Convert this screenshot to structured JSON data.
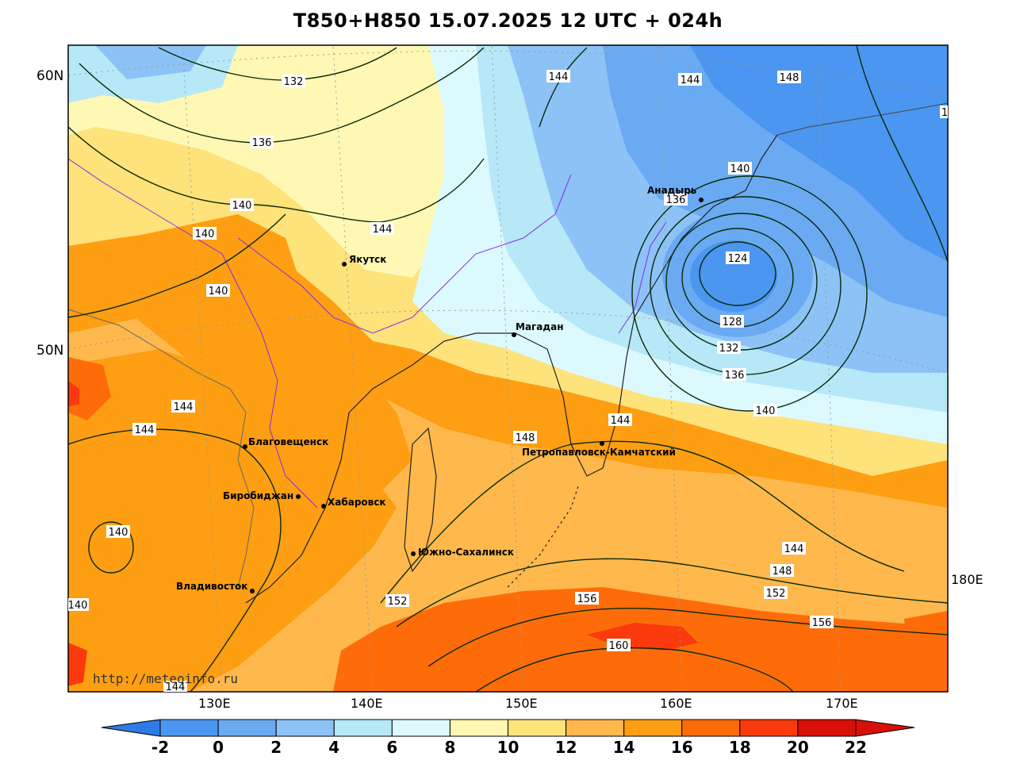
{
  "title": "T850+H850 15.07.2025 12 UTC + 024h",
  "watermark": "http://meteoinfo.ru",
  "lat_labels": [
    "60N",
    "50N"
  ],
  "lon_labels": [
    "130E",
    "140E",
    "150E",
    "160E",
    "170E",
    "180E"
  ],
  "colorbar": {
    "ticks": [
      "-2",
      "0",
      "2",
      "4",
      "6",
      "8",
      "10",
      "12",
      "14",
      "16",
      "18",
      "20",
      "22"
    ],
    "colors": [
      "#3b88ee",
      "#4b96f0",
      "#6aaaf2",
      "#8cc2f6",
      "#b6e8f8",
      "#dcfafe",
      "#fef8b4",
      "#fee27a",
      "#feb84c",
      "#fe9e12",
      "#fe6c0a",
      "#fa3a0c",
      "#d81008",
      "#2f7be6"
    ]
  },
  "cities": [
    "Якутск",
    "Магадан",
    "Анадырь",
    "Благовещенск",
    "Биробиджан",
    "Хабаровск",
    "Петропавловск-Камчатский",
    "Южно-Сахалинск",
    "Владивосток"
  ],
  "contour_labels": [
    "132",
    "136",
    "140",
    "140",
    "140",
    "144",
    "144",
    "144",
    "148",
    "1",
    "140",
    "136",
    "124",
    "128",
    "132",
    "136",
    "140",
    "144",
    "144",
    "148",
    "144",
    "140",
    "152",
    "156",
    "160",
    "156",
    "152",
    "148",
    "144",
    "140",
    "144"
  ]
}
